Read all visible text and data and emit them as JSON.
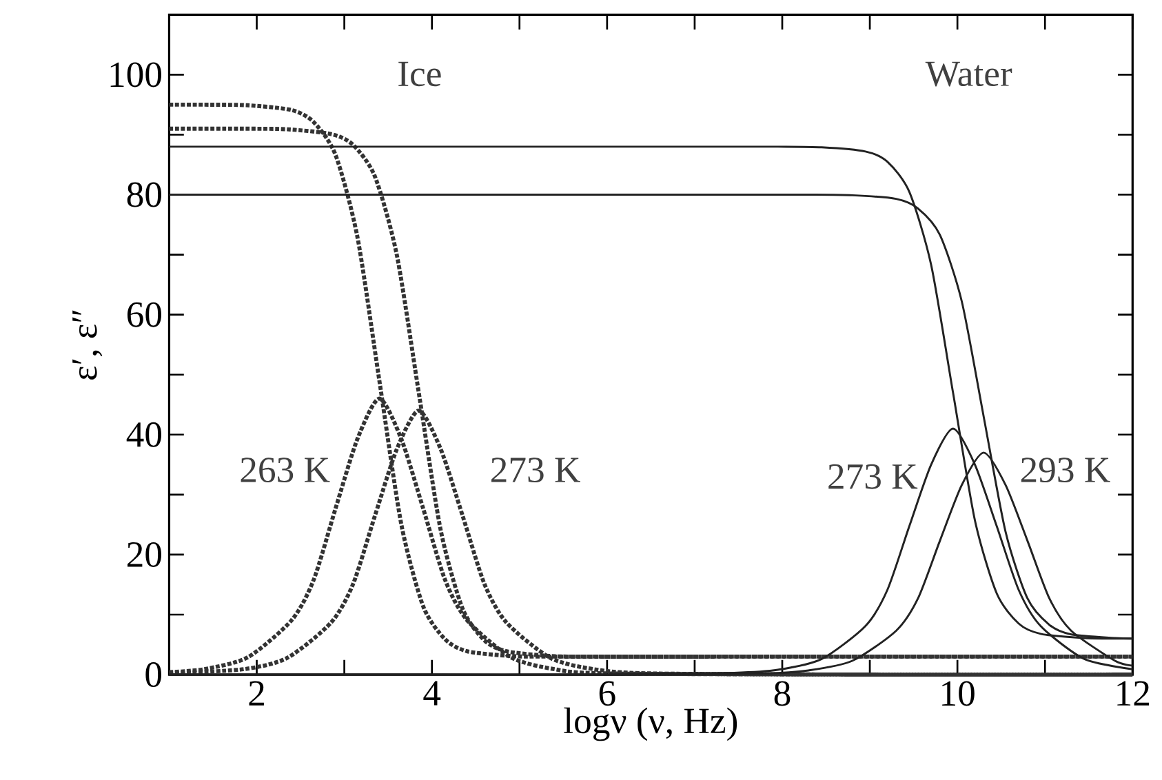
{
  "chart_data": {
    "type": "line",
    "xlabel": "logν  (ν, Hz)",
    "ylabel": "ε′, ε″",
    "xlim": [
      1,
      12
    ],
    "ylim": [
      0,
      110
    ],
    "xticks": [
      {
        "value": 1,
        "label": null
      },
      2,
      {
        "value": 3,
        "label": null
      },
      4,
      {
        "value": 5,
        "label": null
      },
      6,
      {
        "value": 7,
        "label": null
      },
      8,
      {
        "value": 9,
        "label": null
      },
      10,
      {
        "value": 11,
        "label": null
      },
      12
    ],
    "yticks": [
      0,
      {
        "value": 10,
        "label": null
      },
      20,
      {
        "value": 30,
        "label": null
      },
      40,
      {
        "value": 50,
        "label": null
      },
      60,
      {
        "value": 70,
        "label": null
      },
      80,
      {
        "value": 90,
        "label": null
      },
      100
    ],
    "grid": false,
    "marker": "none",
    "series": [
      {
        "color": "#333333",
        "line_style": "dotted",
        "x": [
          1,
          1.4,
          1.9,
          2.4,
          2.65,
          2.9,
          3.15,
          3.4,
          3.65,
          3.9,
          4.15,
          4.4,
          4.9,
          5.4,
          8,
          12
        ],
        "values": [
          95,
          95,
          94.9,
          94.1,
          92.1,
          86.6,
          72.9,
          49,
          25.1,
          11.4,
          5.9,
          3.9,
          3.1,
          3,
          3,
          3
        ]
      },
      {
        "color": "#333333",
        "line_style": "dotted",
        "x": [
          1,
          1.4,
          1.9,
          2.4,
          2.65,
          2.9,
          3.15,
          3.4,
          3.65,
          3.9,
          4.15,
          4.4,
          4.9,
          5.4,
          6,
          9,
          12
        ],
        "values": [
          0.4,
          0.9,
          2.9,
          9.1,
          15.8,
          27.7,
          39.3,
          46,
          39.3,
          27.7,
          15.8,
          9.1,
          2.9,
          0.9,
          0.2,
          0,
          0
        ]
      },
      {
        "color": "#333333",
        "line_style": "dotted",
        "x": [
          1,
          1.85,
          2.35,
          2.85,
          3.1,
          3.35,
          3.6,
          3.85,
          4.1,
          4.35,
          4.6,
          4.85,
          5.35,
          5.85,
          8,
          12
        ],
        "values": [
          91,
          91,
          90.9,
          90.1,
          88.3,
          83,
          69.9,
          47,
          24.1,
          11,
          5.7,
          3.9,
          3.1,
          3,
          3,
          3
        ]
      },
      {
        "color": "#333333",
        "line_style": "dotted",
        "x": [
          1,
          1.85,
          2.35,
          2.85,
          3.1,
          3.35,
          3.6,
          3.85,
          4.1,
          4.35,
          4.6,
          4.85,
          5.35,
          5.85,
          6.5,
          9,
          12
        ],
        "values": [
          0.2,
          0.9,
          2.8,
          8.7,
          15.1,
          26.5,
          37.6,
          44,
          37.6,
          26.5,
          15.1,
          8.7,
          2.8,
          0.9,
          0.2,
          0,
          0
        ]
      },
      {
        "color": "#222222",
        "line_style": "solid",
        "x": [
          1,
          4,
          6,
          7.45,
          7.95,
          8.45,
          8.95,
          9.2,
          9.45,
          9.7,
          9.95,
          10.2,
          10.45,
          10.7,
          10.95,
          11.45,
          12
        ],
        "values": [
          88,
          88,
          88,
          88,
          88,
          87.9,
          87.2,
          85.5,
          80.5,
          68.3,
          47,
          25.7,
          13.5,
          8.5,
          6.8,
          6.1,
          6
        ]
      },
      {
        "color": "#222222",
        "line_style": "solid",
        "x": [
          1,
          4,
          6,
          7.45,
          7.95,
          8.45,
          8.95,
          9.2,
          9.45,
          9.7,
          9.95,
          10.2,
          10.45,
          10.7,
          10.95,
          11.45,
          12
        ],
        "values": [
          0,
          0,
          0,
          0.3,
          0.8,
          2.6,
          8.1,
          14.1,
          24.7,
          35,
          41,
          35,
          24.7,
          14.1,
          8.1,
          2.6,
          0.9
        ]
      },
      {
        "color": "#222222",
        "line_style": "solid",
        "x": [
          1,
          4,
          6,
          7.8,
          8.3,
          8.8,
          9.3,
          9.55,
          9.8,
          10.05,
          10.3,
          10.55,
          10.8,
          11.05,
          11.3,
          11.8,
          12
        ],
        "values": [
          80,
          80,
          80,
          80,
          80,
          79.9,
          79.3,
          77.7,
          73.3,
          62.2,
          43,
          23.8,
          12.7,
          8.3,
          6.7,
          6.1,
          6
        ]
      },
      {
        "color": "#222222",
        "line_style": "solid",
        "x": [
          1,
          4,
          6,
          7.8,
          8.3,
          8.8,
          9.3,
          9.55,
          9.8,
          10.05,
          10.3,
          10.55,
          10.8,
          11.05,
          11.3,
          11.8,
          12
        ],
        "values": [
          0,
          0,
          0,
          0.2,
          0.7,
          2.3,
          7.3,
          12.7,
          22.3,
          31.6,
          37,
          31.6,
          22.3,
          12.7,
          7.3,
          2.3,
          1.5
        ]
      }
    ],
    "annotations": [
      "Ice",
      "Water",
      "263 K",
      "273 K",
      "273 K",
      "293 K"
    ]
  }
}
